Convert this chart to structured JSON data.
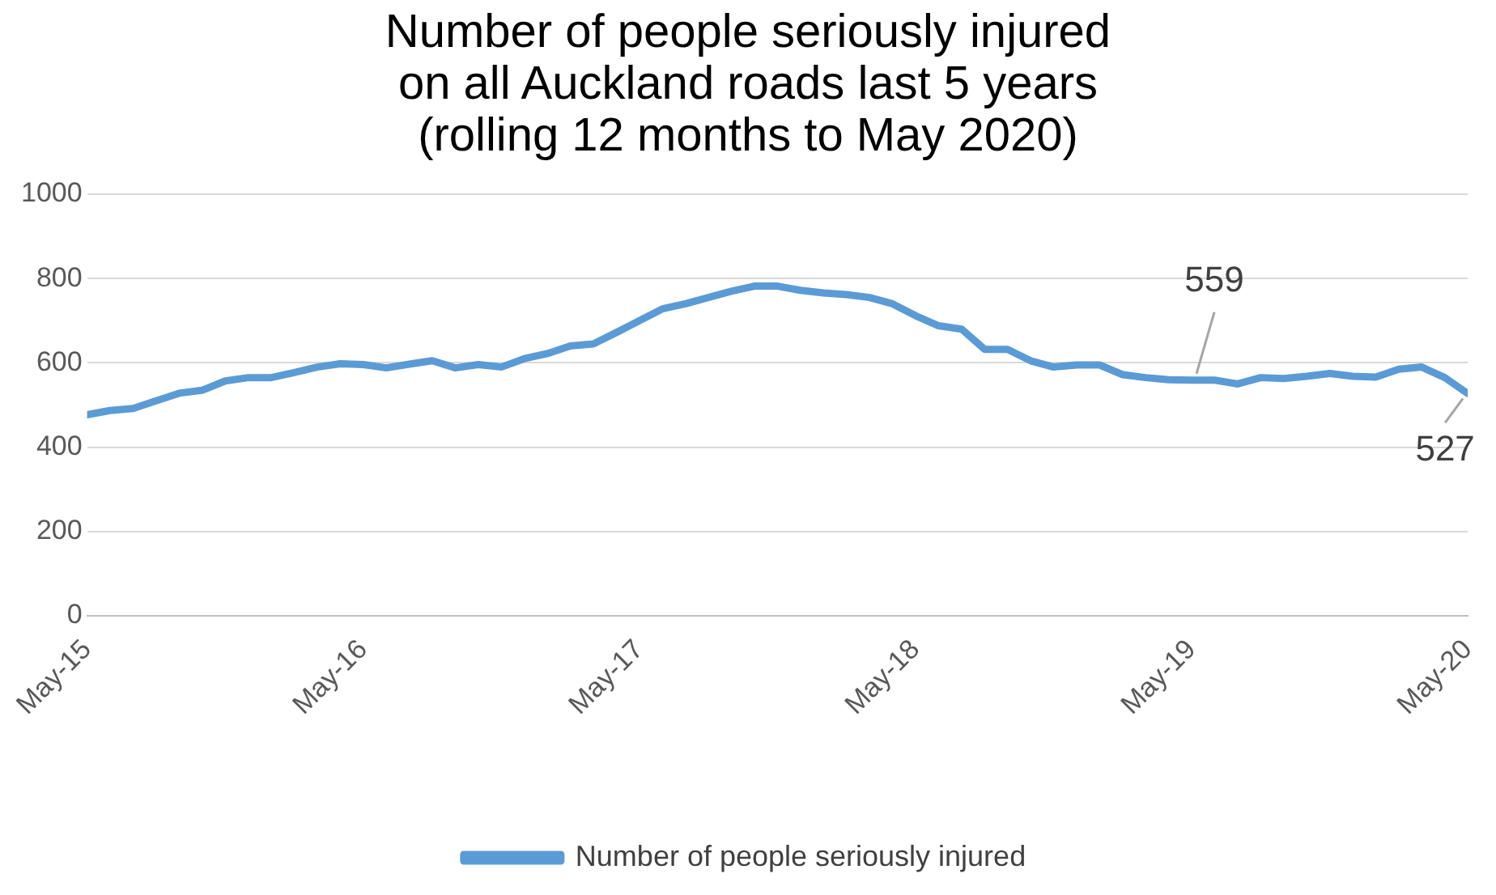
{
  "chart_data": {
    "type": "line",
    "title": "Number of people seriously injured\non all Auckland roads last 5 years\n(rolling 12 months to May 2020)",
    "x": [
      "2015-05",
      "2015-06",
      "2015-07",
      "2015-08",
      "2015-09",
      "2015-10",
      "2015-11",
      "2015-12",
      "2016-01",
      "2016-02",
      "2016-03",
      "2016-04",
      "2016-05",
      "2016-06",
      "2016-07",
      "2016-08",
      "2016-09",
      "2016-10",
      "2016-11",
      "2016-12",
      "2017-01",
      "2017-02",
      "2017-03",
      "2017-04",
      "2017-05",
      "2017-06",
      "2017-07",
      "2017-08",
      "2017-09",
      "2017-10",
      "2017-11",
      "2017-12",
      "2018-01",
      "2018-02",
      "2018-03",
      "2018-04",
      "2018-05",
      "2018-06",
      "2018-07",
      "2018-08",
      "2018-09",
      "2018-10",
      "2018-11",
      "2018-12",
      "2019-01",
      "2019-02",
      "2019-03",
      "2019-04",
      "2019-05",
      "2019-06",
      "2019-07",
      "2019-08",
      "2019-09",
      "2019-10",
      "2019-11",
      "2019-12",
      "2020-01",
      "2020-02",
      "2020-03",
      "2020-04",
      "2020-05"
    ],
    "series": [
      {
        "name": "Number of people seriously injured",
        "color": "#5b9bd5",
        "values": [
          477,
          487,
          492,
          510,
          528,
          535,
          557,
          565,
          565,
          577,
          590,
          598,
          596,
          588,
          597,
          605,
          588,
          596,
          590,
          610,
          622,
          640,
          645,
          672,
          700,
          728,
          740,
          755,
          770,
          782,
          782,
          772,
          766,
          762,
          755,
          740,
          712,
          688,
          680,
          632,
          632,
          605,
          590,
          595,
          595,
          572,
          565,
          560,
          559,
          559,
          550,
          565,
          563,
          568,
          575,
          568,
          566,
          585,
          590,
          565,
          527
        ]
      }
    ],
    "xlim": [
      "2015-05",
      "2020-05"
    ],
    "xticks": [
      {
        "value": "2015-05",
        "label": "May-15"
      },
      {
        "value": "2016-05",
        "label": "May-16"
      },
      {
        "value": "2017-05",
        "label": "May-17"
      },
      {
        "value": "2018-05",
        "label": "May-18"
      },
      {
        "value": "2019-05",
        "label": "May-19"
      },
      {
        "value": "2020-05",
        "label": "May-20"
      }
    ],
    "ylim": [
      0,
      1000
    ],
    "yticks": [
      0,
      200,
      400,
      600,
      800,
      1000
    ],
    "annotations": [
      {
        "text": "559",
        "x": "2019-05",
        "y": 559
      },
      {
        "text": "527",
        "x": "2020-05",
        "y": 527
      }
    ],
    "grid": "y",
    "legend": "bottom",
    "marker": "none",
    "line_style": "solid"
  }
}
